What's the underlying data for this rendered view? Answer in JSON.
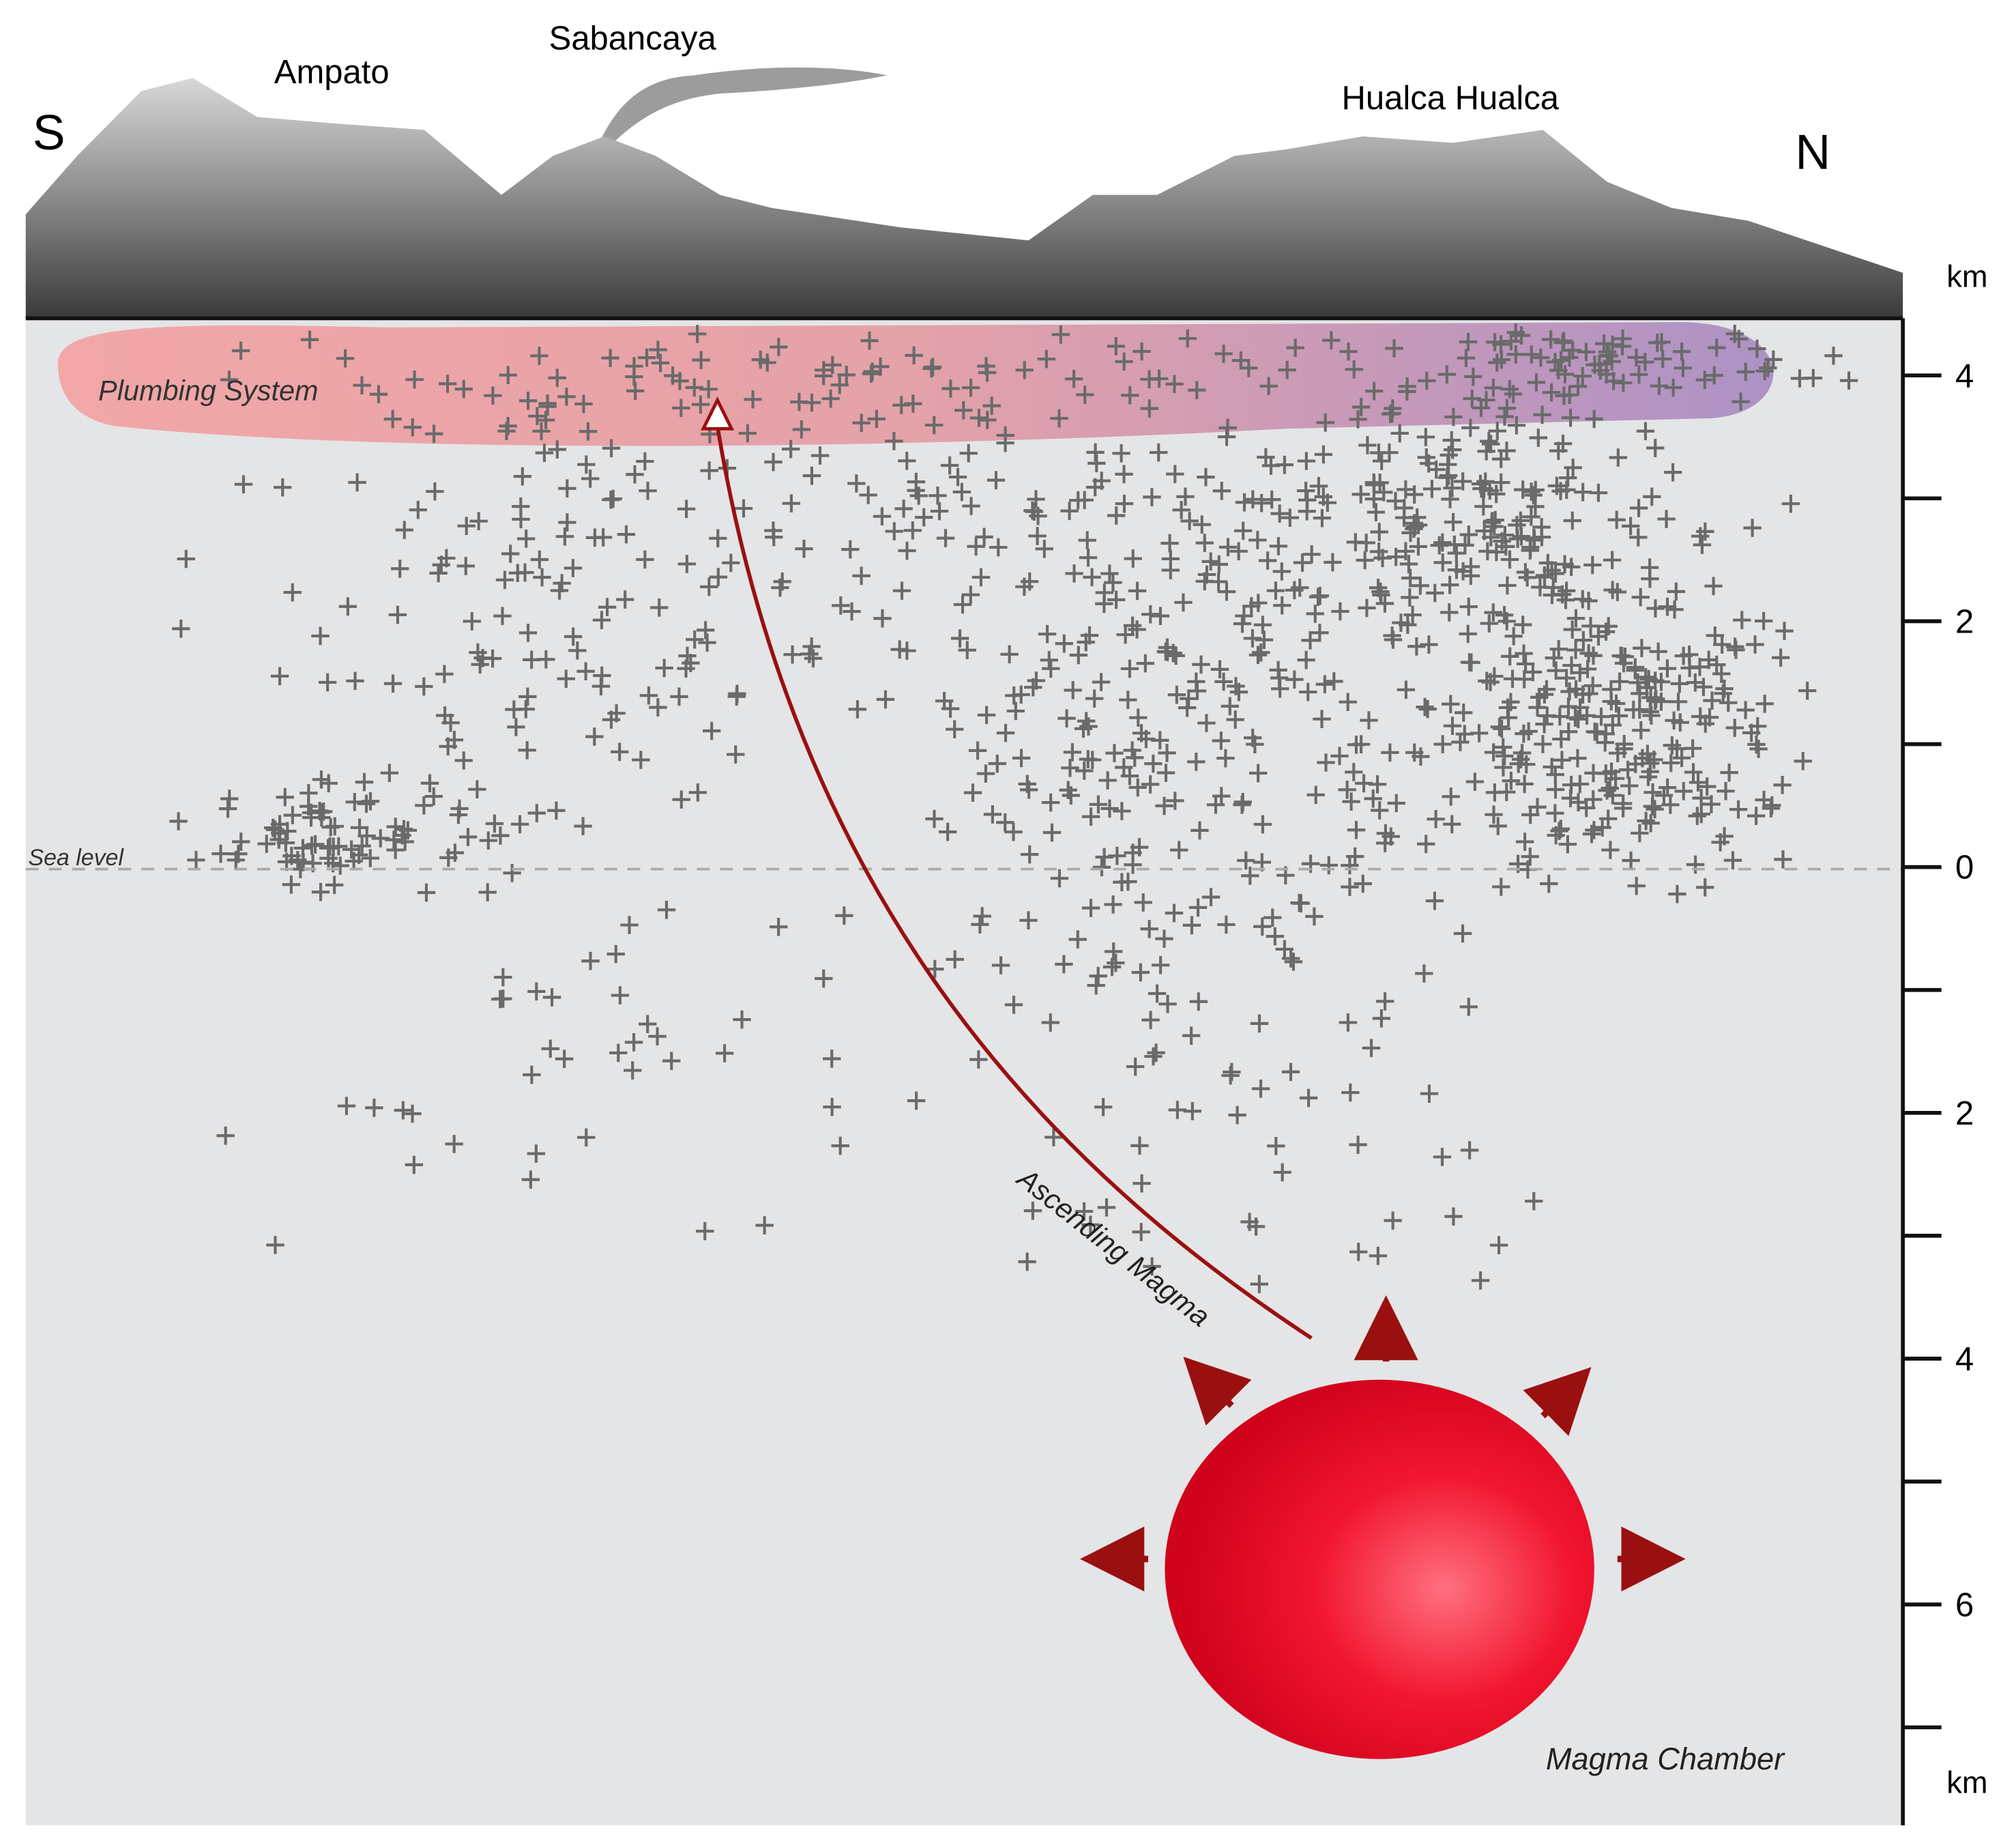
{
  "labels": {
    "south": "S",
    "north": "N",
    "ampato": "Ampato",
    "sabancaya": "Sabancaya",
    "hualca": "Hualca Hualca",
    "plumbing": "Plumbing System",
    "sea_level": "Sea level",
    "ascending": "Ascending Magma",
    "chamber": "Magma Chamber"
  },
  "axis": {
    "unit_top": "km",
    "unit_bottom": "km",
    "tick_labels": [
      "4",
      "2",
      "0",
      "2",
      "4",
      "6"
    ]
  }
}
